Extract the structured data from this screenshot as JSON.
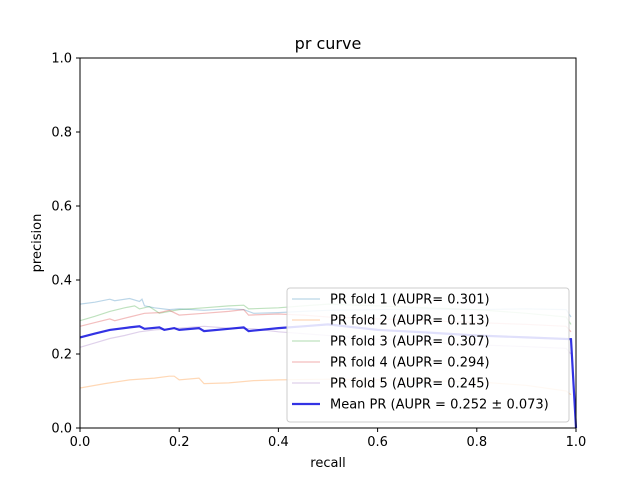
{
  "chart_data": {
    "type": "line",
    "title": "pr curve",
    "xlabel": "recall",
    "ylabel": "precision",
    "xlim": [
      0,
      1
    ],
    "ylim": [
      0,
      1
    ],
    "xticks": [
      "0.0",
      "0.2",
      "0.4",
      "0.6",
      "0.8",
      "1.0"
    ],
    "yticks": [
      "0.0",
      "0.2",
      "0.4",
      "0.6",
      "0.8",
      "1.0"
    ],
    "grid": false,
    "legend_position": "lower-right",
    "series": [
      {
        "name": "PR fold 1 (AUPR= 0.301)",
        "color": "#1f77b4",
        "opacity": 0.3,
        "points": [
          [
            0,
            0.335
          ],
          [
            0.03,
            0.34
          ],
          [
            0.06,
            0.348
          ],
          [
            0.07,
            0.344
          ],
          [
            0.1,
            0.35
          ],
          [
            0.12,
            0.342
          ],
          [
            0.125,
            0.348
          ],
          [
            0.13,
            0.33
          ],
          [
            0.15,
            0.325
          ],
          [
            0.18,
            0.32
          ],
          [
            0.2,
            0.322
          ],
          [
            0.25,
            0.318
          ],
          [
            0.3,
            0.322
          ],
          [
            0.33,
            0.32
          ],
          [
            0.35,
            0.31
          ],
          [
            0.4,
            0.312
          ],
          [
            0.45,
            0.315
          ],
          [
            0.5,
            0.318
          ],
          [
            0.6,
            0.32
          ],
          [
            0.7,
            0.322
          ],
          [
            0.8,
            0.32
          ],
          [
            0.9,
            0.322
          ],
          [
            0.98,
            0.32
          ],
          [
            0.99,
            0.3
          ]
        ]
      },
      {
        "name": "PR fold 2 (AUPR= 0.113)",
        "color": "#ff7f0e",
        "opacity": 0.3,
        "points": [
          [
            0,
            0.108
          ],
          [
            0.05,
            0.12
          ],
          [
            0.1,
            0.13
          ],
          [
            0.15,
            0.135
          ],
          [
            0.18,
            0.14
          ],
          [
            0.19,
            0.14
          ],
          [
            0.2,
            0.13
          ],
          [
            0.24,
            0.135
          ],
          [
            0.25,
            0.12
          ],
          [
            0.3,
            0.122
          ],
          [
            0.35,
            0.128
          ],
          [
            0.4,
            0.13
          ],
          [
            0.5,
            0.132
          ],
          [
            0.6,
            0.13
          ],
          [
            0.7,
            0.128
          ],
          [
            0.8,
            0.125
          ],
          [
            0.9,
            0.115
          ],
          [
            0.98,
            0.1
          ],
          [
            0.99,
            0.09
          ]
        ]
      },
      {
        "name": "PR fold 3 (AUPR= 0.307)",
        "color": "#2ca02c",
        "opacity": 0.3,
        "points": [
          [
            0,
            0.29
          ],
          [
            0.03,
            0.302
          ],
          [
            0.06,
            0.315
          ],
          [
            0.09,
            0.325
          ],
          [
            0.11,
            0.33
          ],
          [
            0.12,
            0.322
          ],
          [
            0.14,
            0.328
          ],
          [
            0.16,
            0.31
          ],
          [
            0.18,
            0.315
          ],
          [
            0.2,
            0.32
          ],
          [
            0.25,
            0.325
          ],
          [
            0.3,
            0.33
          ],
          [
            0.33,
            0.332
          ],
          [
            0.34,
            0.322
          ],
          [
            0.4,
            0.325
          ],
          [
            0.45,
            0.33
          ],
          [
            0.5,
            0.335
          ],
          [
            0.6,
            0.33
          ],
          [
            0.7,
            0.325
          ],
          [
            0.8,
            0.32
          ],
          [
            0.9,
            0.31
          ],
          [
            0.98,
            0.3
          ],
          [
            0.99,
            0.28
          ]
        ]
      },
      {
        "name": "PR fold 4 (AUPR= 0.294)",
        "color": "#d62728",
        "opacity": 0.3,
        "points": [
          [
            0,
            0.275
          ],
          [
            0.03,
            0.285
          ],
          [
            0.06,
            0.295
          ],
          [
            0.07,
            0.29
          ],
          [
            0.1,
            0.3
          ],
          [
            0.13,
            0.31
          ],
          [
            0.16,
            0.312
          ],
          [
            0.18,
            0.318
          ],
          [
            0.2,
            0.305
          ],
          [
            0.25,
            0.31
          ],
          [
            0.3,
            0.315
          ],
          [
            0.33,
            0.32
          ],
          [
            0.34,
            0.305
          ],
          [
            0.4,
            0.308
          ],
          [
            0.45,
            0.305
          ],
          [
            0.5,
            0.3
          ],
          [
            0.6,
            0.295
          ],
          [
            0.7,
            0.29
          ],
          [
            0.8,
            0.285
          ],
          [
            0.9,
            0.28
          ],
          [
            0.98,
            0.275
          ],
          [
            0.99,
            0.26
          ]
        ]
      },
      {
        "name": "PR fold 5 (AUPR= 0.245)",
        "color": "#9467bd",
        "opacity": 0.3,
        "points": [
          [
            0,
            0.218
          ],
          [
            0.03,
            0.23
          ],
          [
            0.06,
            0.242
          ],
          [
            0.09,
            0.25
          ],
          [
            0.12,
            0.26
          ],
          [
            0.15,
            0.265
          ],
          [
            0.2,
            0.27
          ],
          [
            0.25,
            0.275
          ],
          [
            0.3,
            0.27
          ],
          [
            0.35,
            0.268
          ],
          [
            0.4,
            0.26
          ],
          [
            0.45,
            0.255
          ],
          [
            0.5,
            0.25
          ],
          [
            0.6,
            0.24
          ],
          [
            0.7,
            0.232
          ],
          [
            0.8,
            0.225
          ],
          [
            0.9,
            0.22
          ],
          [
            0.98,
            0.215
          ],
          [
            0.99,
            0.2
          ]
        ]
      },
      {
        "name": "Mean PR (AUPR = 0.252 ± 0.073)",
        "color": "#0000dd",
        "opacity": 0.8,
        "bold": true,
        "points": [
          [
            0,
            0.245
          ],
          [
            0.03,
            0.255
          ],
          [
            0.06,
            0.265
          ],
          [
            0.1,
            0.272
          ],
          [
            0.12,
            0.275
          ],
          [
            0.13,
            0.268
          ],
          [
            0.16,
            0.272
          ],
          [
            0.17,
            0.265
          ],
          [
            0.19,
            0.27
          ],
          [
            0.2,
            0.265
          ],
          [
            0.24,
            0.27
          ],
          [
            0.25,
            0.262
          ],
          [
            0.3,
            0.268
          ],
          [
            0.33,
            0.272
          ],
          [
            0.34,
            0.262
          ],
          [
            0.4,
            0.27
          ],
          [
            0.45,
            0.275
          ],
          [
            0.5,
            0.28
          ],
          [
            0.6,
            0.265
          ],
          [
            0.7,
            0.258
          ],
          [
            0.8,
            0.25
          ],
          [
            0.9,
            0.245
          ],
          [
            0.99,
            0.24
          ],
          [
            1.0,
            0.0
          ]
        ]
      }
    ]
  }
}
